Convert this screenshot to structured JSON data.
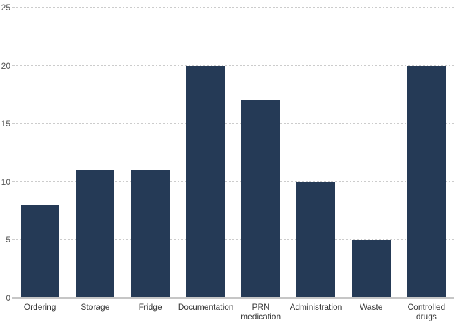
{
  "chart_data": {
    "type": "bar",
    "title": "",
    "xlabel": "",
    "ylabel": "",
    "categories": [
      "Ordering",
      "Storage",
      "Fridge",
      "Documentation",
      "PRN medication",
      "Administration",
      "Waste",
      "Controlled drugs"
    ],
    "values": [
      8,
      11,
      11,
      20,
      17,
      10,
      5,
      20
    ],
    "ylim": [
      0,
      25
    ],
    "yticks": [
      0,
      5,
      10,
      15,
      20,
      25
    ],
    "grid": true,
    "gridline_style": "dotted",
    "legend": false,
    "bar_color": "#253a56",
    "gridline_color": "#cccccc",
    "axis_line_color": "#c6c6c6",
    "y_tick_label_color": "#555555",
    "x_tick_label_color": "#3c3c3c",
    "background_color": "#ffffff"
  }
}
